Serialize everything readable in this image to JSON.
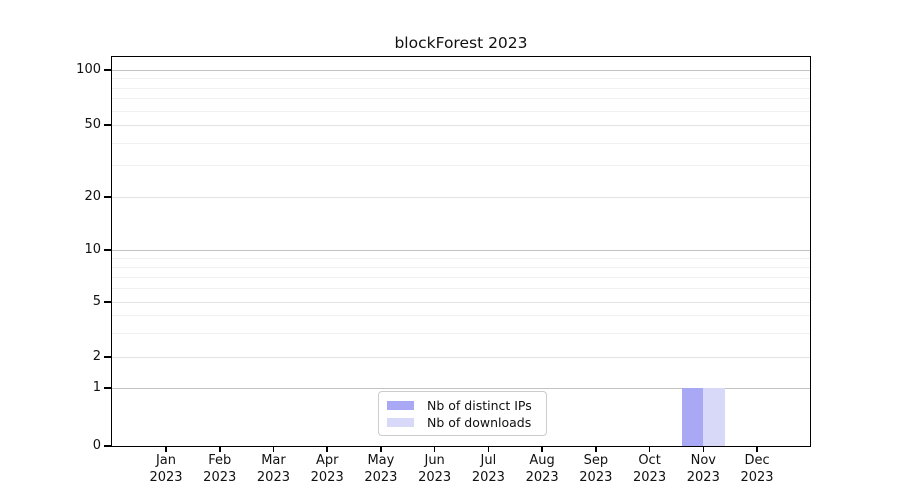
{
  "title": "blockForest 2023",
  "chart_data": {
    "type": "bar",
    "title": "blockForest 2023",
    "months": [
      "Jan",
      "Feb",
      "Mar",
      "Apr",
      "May",
      "Jun",
      "Jul",
      "Aug",
      "Sep",
      "Oct",
      "Nov",
      "Dec"
    ],
    "year": "2023",
    "series": [
      {
        "name": "Nb of distinct IPs",
        "color": "#a8a8f5",
        "values": [
          0,
          0,
          0,
          0,
          0,
          0,
          0,
          0,
          0,
          0,
          1,
          0
        ]
      },
      {
        "name": "Nb of downloads",
        "color": "#d8d8f8",
        "values": [
          0,
          0,
          0,
          0,
          0,
          0,
          0,
          0,
          0,
          0,
          1,
          0
        ]
      }
    ],
    "yticks": [
      0,
      1,
      2,
      5,
      10,
      20,
      50,
      100
    ],
    "yscale": "log-like",
    "ylim": [
      0,
      115
    ],
    "xlabel": "",
    "ylabel": "",
    "grid": true,
    "legend_position": "bottom-center",
    "colors": {
      "grid_decade": "#c2c2c2",
      "grid_major": "#e3e3e3",
      "grid_minor": "#f1f1f1",
      "axis": "#000000"
    }
  }
}
